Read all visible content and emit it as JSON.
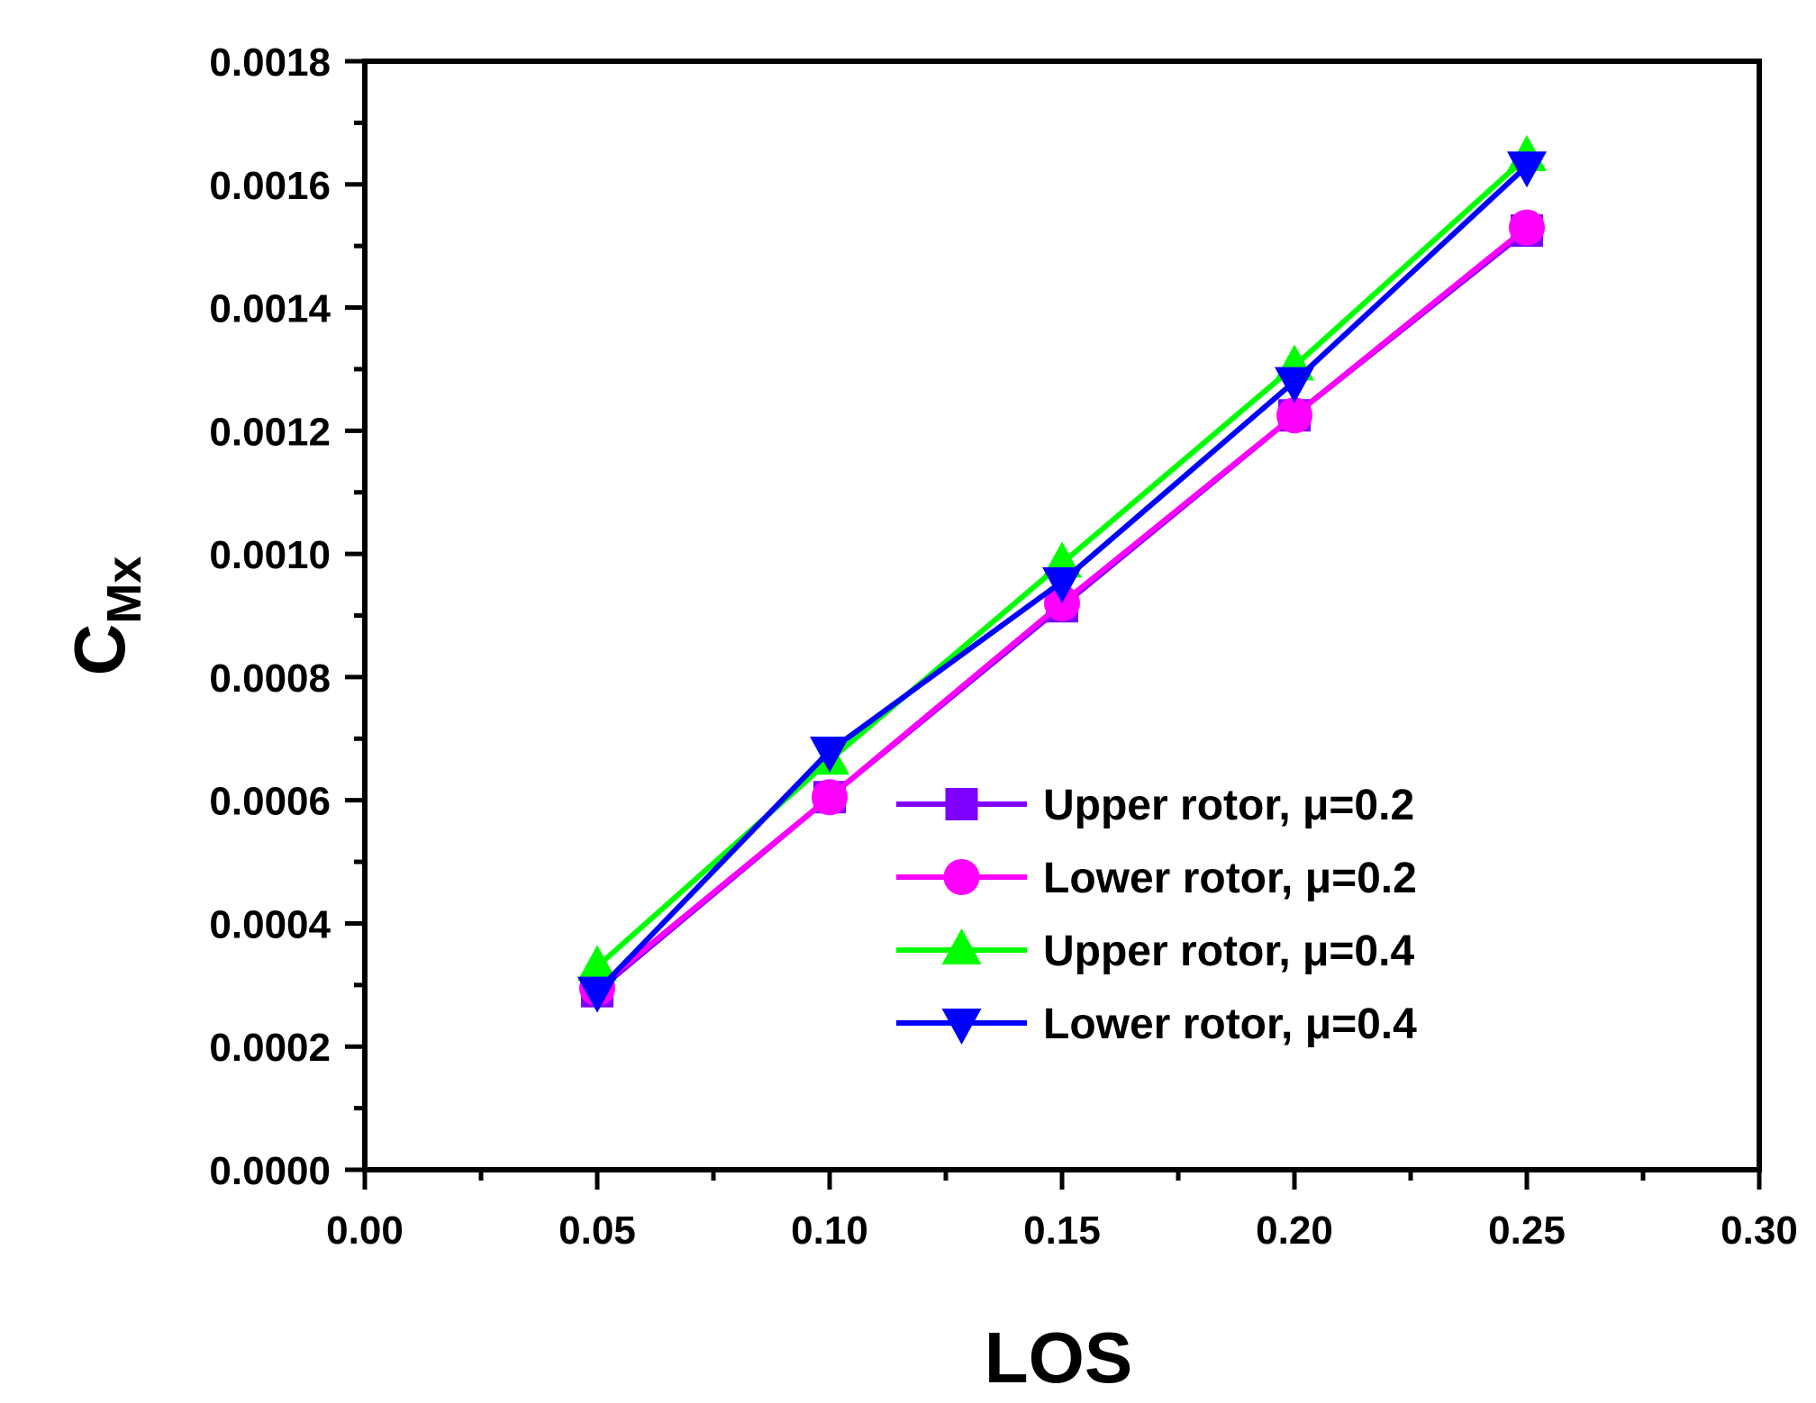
{
  "chart_data": {
    "type": "line",
    "title": "",
    "xlabel": "LOS",
    "ylabel_main": "C",
    "ylabel_sub": "Mx",
    "xlim": [
      0.0,
      0.3
    ],
    "ylim": [
      0.0,
      0.0018
    ],
    "xticks": [
      "0.00",
      "0.05",
      "0.10",
      "0.15",
      "0.20",
      "0.25",
      "0.30"
    ],
    "yticks": [
      "0.0000",
      "0.0002",
      "0.0004",
      "0.0006",
      "0.0008",
      "0.0010",
      "0.0012",
      "0.0014",
      "0.0016",
      "0.0018"
    ],
    "grid": false,
    "legend_position": "bottom-right",
    "series": [
      {
        "name": "Upper rotor, μ=0.2",
        "color": "#7f00ff",
        "marker": "square",
        "x": [
          0.05,
          0.1,
          0.15,
          0.2,
          0.25
        ],
        "y": [
          0.00029,
          0.000605,
          0.000915,
          0.001225,
          0.001525
        ]
      },
      {
        "name": "Lower rotor, μ=0.2",
        "color": "#ff00ff",
        "marker": "circle",
        "x": [
          0.05,
          0.1,
          0.15,
          0.2,
          0.25
        ],
        "y": [
          0.000295,
          0.000605,
          0.00092,
          0.001225,
          0.00153
        ]
      },
      {
        "name": "Upper rotor, μ=0.4",
        "color": "#00ff00",
        "marker": "triangle-up",
        "x": [
          0.05,
          0.1,
          0.15,
          0.2,
          0.25
        ],
        "y": [
          0.00033,
          0.000665,
          0.000985,
          0.001305,
          0.001645
        ]
      },
      {
        "name": "Lower rotor, μ=0.4",
        "color": "#0000ff",
        "marker": "triangle-down",
        "x": [
          0.05,
          0.1,
          0.15,
          0.2,
          0.25
        ],
        "y": [
          0.00029,
          0.00068,
          0.000955,
          0.00128,
          0.00163
        ]
      }
    ]
  }
}
